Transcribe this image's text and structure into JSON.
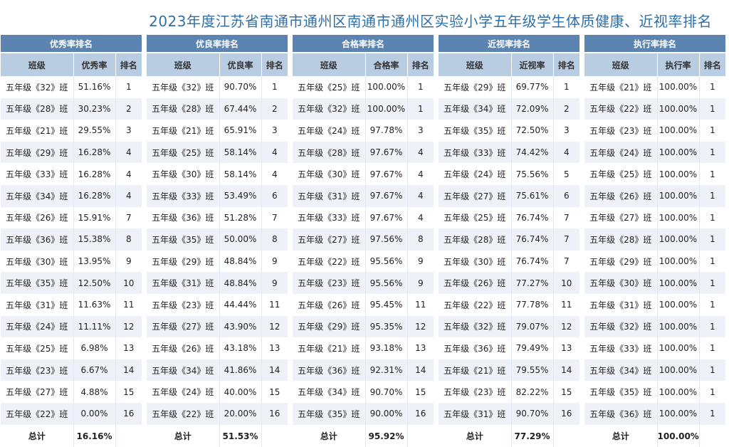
{
  "title": "2023年度江苏省南通市通州区南通市通州区实验小学五年级学生体质健康、近视率排名",
  "total_label": "总计",
  "tables": [
    {
      "header": "优秀率排名",
      "columns": [
        "班级",
        "优秀率",
        "排名"
      ],
      "total": "16.16%",
      "rows": [
        [
          "五年级《32》班",
          "51.16%",
          "1"
        ],
        [
          "五年级《28》班",
          "30.23%",
          "2"
        ],
        [
          "五年级《21》班",
          "29.55%",
          "3"
        ],
        [
          "五年级《29》班",
          "16.28%",
          "4"
        ],
        [
          "五年级《33》班",
          "16.28%",
          "4"
        ],
        [
          "五年级《34》班",
          "16.28%",
          "4"
        ],
        [
          "五年级《26》班",
          "15.91%",
          "7"
        ],
        [
          "五年级《36》班",
          "15.38%",
          "8"
        ],
        [
          "五年级《30》班",
          "13.95%",
          "9"
        ],
        [
          "五年级《35》班",
          "12.50%",
          "10"
        ],
        [
          "五年级《31》班",
          "11.63%",
          "11"
        ],
        [
          "五年级《24》班",
          "11.11%",
          "12"
        ],
        [
          "五年级《25》班",
          "6.98%",
          "13"
        ],
        [
          "五年级《23》班",
          "6.67%",
          "14"
        ],
        [
          "五年级《27》班",
          "4.88%",
          "15"
        ],
        [
          "五年级《22》班",
          "0.00%",
          "16"
        ]
      ]
    },
    {
      "header": "优良率排名",
      "columns": [
        "班级",
        "优良率",
        "排名"
      ],
      "total": "51.53%",
      "rows": [
        [
          "五年级《32》班",
          "90.70%",
          "1"
        ],
        [
          "五年级《28》班",
          "67.44%",
          "2"
        ],
        [
          "五年级《21》班",
          "65.91%",
          "3"
        ],
        [
          "五年级《25》班",
          "58.14%",
          "4"
        ],
        [
          "五年级《30》班",
          "58.14%",
          "4"
        ],
        [
          "五年级《33》班",
          "53.49%",
          "6"
        ],
        [
          "五年级《36》班",
          "51.28%",
          "7"
        ],
        [
          "五年级《35》班",
          "50.00%",
          "8"
        ],
        [
          "五年级《29》班",
          "48.84%",
          "9"
        ],
        [
          "五年级《31》班",
          "48.84%",
          "9"
        ],
        [
          "五年级《23》班",
          "44.44%",
          "11"
        ],
        [
          "五年级《27》班",
          "43.90%",
          "12"
        ],
        [
          "五年级《26》班",
          "43.18%",
          "13"
        ],
        [
          "五年级《34》班",
          "41.86%",
          "14"
        ],
        [
          "五年级《24》班",
          "40.00%",
          "15"
        ],
        [
          "五年级《22》班",
          "20.00%",
          "16"
        ]
      ]
    },
    {
      "header": "合格率排名",
      "columns": [
        "班级",
        "合格率",
        "排名"
      ],
      "total": "95.92%",
      "rows": [
        [
          "五年级《25》班",
          "100.00%",
          "1"
        ],
        [
          "五年级《32》班",
          "100.00%",
          "1"
        ],
        [
          "五年级《24》班",
          "97.78%",
          "3"
        ],
        [
          "五年级《28》班",
          "97.67%",
          "4"
        ],
        [
          "五年级《30》班",
          "97.67%",
          "4"
        ],
        [
          "五年级《31》班",
          "97.67%",
          "4"
        ],
        [
          "五年级《33》班",
          "97.67%",
          "4"
        ],
        [
          "五年级《27》班",
          "97.56%",
          "8"
        ],
        [
          "五年级《22》班",
          "95.56%",
          "9"
        ],
        [
          "五年级《23》班",
          "95.56%",
          "9"
        ],
        [
          "五年级《26》班",
          "95.45%",
          "11"
        ],
        [
          "五年级《29》班",
          "95.35%",
          "12"
        ],
        [
          "五年级《21》班",
          "93.18%",
          "13"
        ],
        [
          "五年级《36》班",
          "92.31%",
          "14"
        ],
        [
          "五年级《34》班",
          "90.70%",
          "15"
        ],
        [
          "五年级《35》班",
          "90.00%",
          "16"
        ]
      ]
    },
    {
      "header": "近视率排名",
      "columns": [
        "班级",
        "近视率",
        "排名"
      ],
      "total": "77.29%",
      "rows": [
        [
          "五年级《29》班",
          "69.77%",
          "1"
        ],
        [
          "五年级《34》班",
          "72.09%",
          "2"
        ],
        [
          "五年级《35》班",
          "72.50%",
          "3"
        ],
        [
          "五年级《33》班",
          "74.42%",
          "4"
        ],
        [
          "五年级《24》班",
          "75.56%",
          "5"
        ],
        [
          "五年级《27》班",
          "75.61%",
          "6"
        ],
        [
          "五年级《25》班",
          "76.74%",
          "7"
        ],
        [
          "五年级《28》班",
          "76.74%",
          "7"
        ],
        [
          "五年级《30》班",
          "76.74%",
          "7"
        ],
        [
          "五年级《26》班",
          "77.27%",
          "10"
        ],
        [
          "五年级《22》班",
          "77.78%",
          "11"
        ],
        [
          "五年级《32》班",
          "79.07%",
          "12"
        ],
        [
          "五年级《36》班",
          "79.49%",
          "13"
        ],
        [
          "五年级《21》班",
          "79.55%",
          "14"
        ],
        [
          "五年级《23》班",
          "82.22%",
          "15"
        ],
        [
          "五年级《31》班",
          "90.70%",
          "16"
        ]
      ]
    },
    {
      "header": "执行率排名",
      "columns": [
        "班级",
        "执行率",
        "排名"
      ],
      "total": "100.00%",
      "rows": [
        [
          "五年级《21》班",
          "100.00%",
          "1"
        ],
        [
          "五年级《22》班",
          "100.00%",
          "1"
        ],
        [
          "五年级《23》班",
          "100.00%",
          "1"
        ],
        [
          "五年级《24》班",
          "100.00%",
          "1"
        ],
        [
          "五年级《25》班",
          "100.00%",
          "1"
        ],
        [
          "五年级《26》班",
          "100.00%",
          "1"
        ],
        [
          "五年级《27》班",
          "100.00%",
          "1"
        ],
        [
          "五年级《28》班",
          "100.00%",
          "1"
        ],
        [
          "五年级《29》班",
          "100.00%",
          "1"
        ],
        [
          "五年级《30》班",
          "100.00%",
          "1"
        ],
        [
          "五年级《31》班",
          "100.00%",
          "1"
        ],
        [
          "五年级《32》班",
          "100.00%",
          "1"
        ],
        [
          "五年级《33》班",
          "100.00%",
          "1"
        ],
        [
          "五年级《34》班",
          "100.00%",
          "1"
        ],
        [
          "五年级《35》班",
          "100.00%",
          "1"
        ],
        [
          "五年级《36》班",
          "100.00%",
          "1"
        ]
      ]
    }
  ]
}
